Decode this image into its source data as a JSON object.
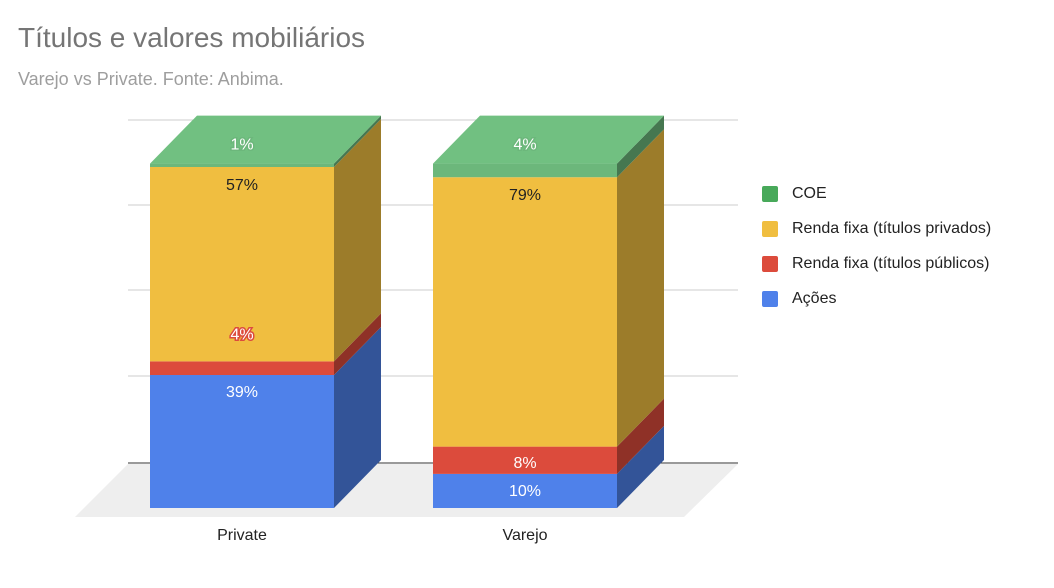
{
  "title": "Títulos e valores mobiliários",
  "subtitle": "Varejo vs Private. Fonte: Anbima.",
  "chart_data": {
    "type": "bar",
    "stacked": true,
    "three_d": true,
    "percent_stacked": true,
    "categories": [
      "Private",
      "Varejo"
    ],
    "series": [
      {
        "name": "Ações",
        "color": "#4f81ea",
        "values": [
          39,
          10
        ],
        "labels": [
          "39%",
          "10%"
        ],
        "label_color": "#ffffff"
      },
      {
        "name": "Renda fixa (títulos públicos)",
        "color": "#dc4b3c",
        "values": [
          4,
          8
        ],
        "labels": [
          "4%",
          "8%"
        ],
        "label_color": "#ffffff"
      },
      {
        "name": "Renda fixa (títulos privados)",
        "color": "#f0be40",
        "values": [
          57,
          79
        ],
        "labels": [
          "57%",
          "79%"
        ],
        "label_color": "#222222"
      },
      {
        "name": "COE",
        "color": "#6cb77b",
        "values": [
          1,
          4
        ],
        "labels": [
          "1%",
          "4%"
        ],
        "label_color": "#ffffff"
      }
    ],
    "ylim": [
      0,
      100
    ],
    "grid": true,
    "legend_position": "right"
  },
  "legend": {
    "items": [
      {
        "label": "COE",
        "color": "#48a95a"
      },
      {
        "label": "Renda fixa (títulos privados)",
        "color": "#f0be40"
      },
      {
        "label": "Renda fixa (títulos públicos)",
        "color": "#dc4b3c"
      },
      {
        "label": "Ações",
        "color": "#4f81ea"
      }
    ]
  }
}
